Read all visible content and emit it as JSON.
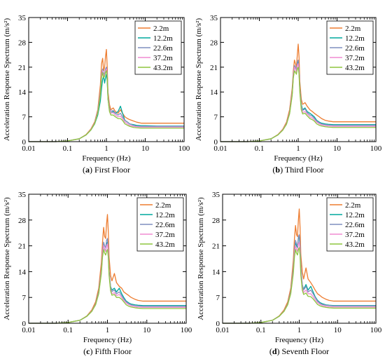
{
  "chart_data": [
    {
      "type": "line",
      "panel_letter": "a",
      "caption_title": "First Floor",
      "xlabel": "Frequency (Hz)",
      "ylabel": "Acceleration Response Spectrum (m/s²)",
      "xscale": "log",
      "xlim": [
        0.01,
        100
      ],
      "ylim": [
        0,
        35
      ],
      "xticks": [
        "0.01",
        "0.1",
        "1",
        "10",
        "100"
      ],
      "yticks": [
        "0",
        "7",
        "14",
        "21",
        "28",
        "35"
      ],
      "legend_position": "top-right",
      "x": [
        0.01,
        0.05,
        0.1,
        0.2,
        0.3,
        0.4,
        0.5,
        0.6,
        0.7,
        0.75,
        0.8,
        0.85,
        0.9,
        0.95,
        1.0,
        1.05,
        1.1,
        1.2,
        1.3,
        1.5,
        1.7,
        2.0,
        2.3,
        2.6,
        3.0,
        3.5,
        4.0,
        5.0,
        6.0,
        8.0,
        10,
        20,
        50,
        100
      ],
      "series": [
        {
          "name": "2.2m",
          "color": "#ED7D31",
          "values": [
            0,
            0,
            0.2,
            0.8,
            2.0,
            3.6,
            5.6,
            9.0,
            16.0,
            22.0,
            23.5,
            20.0,
            21.0,
            24.0,
            26.0,
            21.0,
            14.0,
            10.5,
            9.0,
            9.5,
            8.5,
            8.0,
            9.0,
            8.0,
            7.0,
            6.5,
            6.2,
            5.8,
            5.5,
            5.2,
            5.2,
            5.2,
            5.2,
            5.2
          ]
        },
        {
          "name": "12.2m",
          "color": "#00A99D",
          "values": [
            0,
            0,
            0.2,
            0.8,
            1.9,
            3.3,
            5.0,
            7.5,
            11.5,
            15.0,
            17.5,
            18.5,
            16.5,
            18.0,
            19.0,
            17.0,
            12.0,
            9.0,
            8.0,
            8.5,
            8.0,
            8.5,
            10.0,
            8.0,
            6.0,
            5.5,
            5.0,
            4.8,
            4.6,
            4.5,
            4.5,
            4.4,
            4.4,
            4.4
          ]
        },
        {
          "name": "22.6m",
          "color": "#7F8FBF",
          "values": [
            0,
            0,
            0.2,
            0.8,
            1.9,
            3.4,
            5.3,
            8.5,
            14.0,
            19.0,
            20.5,
            19.0,
            19.5,
            20.5,
            21.0,
            19.0,
            13.0,
            9.5,
            8.5,
            8.8,
            8.0,
            7.5,
            8.0,
            7.0,
            6.0,
            5.5,
            5.0,
            4.6,
            4.4,
            4.3,
            4.3,
            4.3,
            4.3,
            4.3
          ]
        },
        {
          "name": "37.2m",
          "color": "#F08CD2",
          "values": [
            0,
            0,
            0.2,
            0.8,
            1.9,
            3.4,
            5.2,
            8.2,
            13.5,
            18.5,
            20.0,
            18.5,
            19.0,
            20.0,
            20.5,
            18.5,
            12.5,
            9.0,
            8.0,
            8.2,
            7.5,
            7.0,
            7.2,
            6.5,
            5.5,
            5.0,
            4.6,
            4.3,
            4.2,
            4.1,
            4.1,
            4.1,
            4.1,
            4.1
          ]
        },
        {
          "name": "43.2m",
          "color": "#8DC63F",
          "values": [
            0,
            0,
            0.2,
            0.8,
            1.9,
            3.3,
            5.1,
            8.0,
            13.0,
            18.0,
            19.5,
            18.0,
            18.5,
            19.5,
            20.0,
            18.0,
            12.0,
            8.5,
            7.5,
            7.5,
            7.0,
            6.5,
            6.5,
            6.0,
            5.0,
            4.6,
            4.3,
            4.0,
            3.9,
            3.8,
            3.8,
            3.8,
            3.8,
            3.8
          ]
        }
      ]
    },
    {
      "type": "line",
      "panel_letter": "b",
      "caption_title": "Third Floor",
      "xlabel": "Frequency (Hz)",
      "ylabel": "Acceleration Response Spectrum (m/s²)",
      "xscale": "log",
      "xlim": [
        0.01,
        100
      ],
      "ylim": [
        0,
        35
      ],
      "xticks": [
        "0.01",
        "0.1",
        "1",
        "10",
        "100"
      ],
      "yticks": [
        "0",
        "7",
        "14",
        "21",
        "28",
        "35"
      ],
      "legend_position": "top-right",
      "x": [
        0.01,
        0.05,
        0.1,
        0.2,
        0.3,
        0.4,
        0.5,
        0.6,
        0.7,
        0.75,
        0.8,
        0.85,
        0.9,
        0.95,
        1.0,
        1.05,
        1.1,
        1.2,
        1.3,
        1.5,
        1.7,
        2.0,
        2.3,
        2.6,
        3.0,
        3.5,
        4.0,
        5.0,
        6.0,
        8.0,
        10,
        20,
        50,
        100
      ],
      "series": [
        {
          "name": "2.2m",
          "color": "#ED7D31",
          "values": [
            0,
            0,
            0.2,
            0.8,
            2.0,
            3.5,
            5.5,
            9.0,
            15.0,
            20.0,
            23.0,
            22.0,
            21.0,
            24.5,
            27.5,
            24.0,
            17.0,
            12.0,
            10.5,
            11.0,
            10.0,
            9.0,
            8.5,
            8.0,
            7.5,
            7.0,
            6.5,
            6.0,
            5.8,
            5.6,
            5.6,
            5.6,
            5.6,
            5.6
          ]
        },
        {
          "name": "12.2m",
          "color": "#00A99D",
          "values": [
            0,
            0,
            0.2,
            0.8,
            1.9,
            3.3,
            5.0,
            8.0,
            13.5,
            18.5,
            21.0,
            20.5,
            20.0,
            22.0,
            22.5,
            20.0,
            15.0,
            10.5,
            9.0,
            9.5,
            8.5,
            8.0,
            7.5,
            7.0,
            6.0,
            5.5,
            5.2,
            5.0,
            4.9,
            4.8,
            4.8,
            4.8,
            4.8,
            4.8
          ]
        },
        {
          "name": "22.6m",
          "color": "#7F8FBF",
          "values": [
            0,
            0,
            0.2,
            0.8,
            1.9,
            3.3,
            5.1,
            8.2,
            14.0,
            19.0,
            21.5,
            21.0,
            20.0,
            22.5,
            23.0,
            20.5,
            15.0,
            10.0,
            8.8,
            9.2,
            8.2,
            7.5,
            7.2,
            6.6,
            5.8,
            5.3,
            5.0,
            4.8,
            4.7,
            4.6,
            4.6,
            4.6,
            4.6,
            4.6
          ]
        },
        {
          "name": "37.2m",
          "color": "#F08CD2",
          "values": [
            0,
            0,
            0.2,
            0.8,
            1.9,
            3.3,
            5.0,
            8.0,
            13.5,
            18.5,
            21.0,
            20.5,
            19.5,
            21.5,
            22.0,
            19.5,
            14.5,
            9.5,
            8.2,
            8.5,
            7.8,
            7.0,
            6.7,
            6.2,
            5.5,
            5.0,
            4.7,
            4.5,
            4.4,
            4.3,
            4.3,
            4.3,
            4.3,
            4.3
          ]
        },
        {
          "name": "43.2m",
          "color": "#8DC63F",
          "values": [
            0,
            0,
            0.2,
            0.8,
            1.9,
            3.2,
            4.9,
            7.8,
            13.0,
            18.0,
            20.0,
            19.5,
            19.0,
            20.5,
            21.0,
            19.0,
            14.0,
            9.0,
            7.8,
            8.0,
            7.3,
            6.5,
            6.2,
            5.8,
            5.0,
            4.6,
            4.4,
            4.2,
            4.1,
            4.0,
            4.0,
            4.0,
            4.0,
            4.0
          ]
        }
      ]
    },
    {
      "type": "line",
      "panel_letter": "c",
      "caption_title": "Fifth Floor",
      "xlabel": "Frequency (Hz)",
      "ylabel": "Acceleration Response Spectrum (m/s²)",
      "xscale": "log",
      "xlim": [
        0.01,
        100
      ],
      "ylim": [
        0,
        35
      ],
      "xticks": [
        "0.01",
        "0.1",
        "1",
        "10",
        "100"
      ],
      "yticks": [
        "0",
        "7",
        "14",
        "21",
        "28",
        "35"
      ],
      "legend_position": "top-right",
      "x": [
        0.01,
        0.05,
        0.1,
        0.2,
        0.3,
        0.4,
        0.5,
        0.6,
        0.7,
        0.75,
        0.8,
        0.85,
        0.9,
        0.95,
        1.0,
        1.05,
        1.1,
        1.2,
        1.3,
        1.5,
        1.7,
        2.0,
        2.3,
        2.6,
        3.0,
        3.5,
        4.0,
        5.0,
        6.0,
        8.0,
        10,
        20,
        50,
        100
      ],
      "series": [
        {
          "name": "2.2m",
          "color": "#ED7D31",
          "values": [
            0,
            0,
            0.2,
            0.8,
            2.0,
            3.6,
            5.8,
            9.5,
            16.5,
            22.0,
            26.0,
            23.5,
            23.0,
            27.0,
            29.5,
            25.0,
            18.0,
            13.0,
            11.5,
            13.5,
            11.0,
            10.0,
            9.5,
            8.5,
            8.0,
            7.5,
            7.0,
            6.5,
            6.2,
            6.0,
            6.0,
            6.0,
            6.0,
            6.0
          ]
        },
        {
          "name": "12.2m",
          "color": "#00A99D",
          "values": [
            0,
            0,
            0.2,
            0.8,
            1.9,
            3.3,
            5.2,
            8.5,
            14.0,
            19.0,
            21.0,
            20.0,
            19.5,
            21.5,
            22.0,
            19.5,
            14.0,
            10.0,
            9.0,
            9.5,
            8.5,
            9.5,
            8.0,
            7.0,
            6.0,
            5.5,
            5.2,
            5.0,
            4.9,
            4.8,
            4.8,
            4.8,
            4.8,
            4.8
          ]
        },
        {
          "name": "22.6m",
          "color": "#7F8FBF",
          "values": [
            0,
            0,
            0.2,
            0.8,
            1.9,
            3.3,
            5.2,
            8.5,
            14.5,
            19.5,
            22.0,
            21.0,
            20.5,
            22.5,
            23.0,
            20.0,
            14.5,
            9.8,
            8.6,
            9.0,
            8.0,
            8.5,
            7.5,
            6.6,
            5.8,
            5.3,
            5.0,
            4.8,
            4.7,
            4.6,
            4.6,
            4.6,
            4.6,
            4.6
          ]
        },
        {
          "name": "37.2m",
          "color": "#F08CD2",
          "values": [
            0,
            0,
            0.2,
            0.8,
            1.9,
            3.3,
            5.1,
            8.2,
            14.0,
            19.0,
            21.0,
            20.0,
            19.5,
            21.0,
            21.5,
            19.0,
            13.5,
            9.2,
            8.0,
            8.3,
            7.5,
            7.8,
            7.0,
            6.2,
            5.5,
            5.0,
            4.7,
            4.5,
            4.4,
            4.3,
            4.3,
            4.3,
            4.3,
            4.3
          ]
        },
        {
          "name": "43.2m",
          "color": "#8DC63F",
          "values": [
            0,
            0,
            0.2,
            0.8,
            1.9,
            3.2,
            5.0,
            8.0,
            13.5,
            18.0,
            20.0,
            19.0,
            18.5,
            19.5,
            20.0,
            18.0,
            13.0,
            8.8,
            7.6,
            7.8,
            7.0,
            7.0,
            6.5,
            5.8,
            5.0,
            4.6,
            4.4,
            4.2,
            4.1,
            4.0,
            4.0,
            4.0,
            4.0,
            4.0
          ]
        }
      ]
    },
    {
      "type": "line",
      "panel_letter": "d",
      "caption_title": "Seventh Floor",
      "xlabel": "Frequency (Hz)",
      "ylabel": "Acceleration Response Spectrum (m/s²)",
      "xscale": "log",
      "xlim": [
        0.01,
        100
      ],
      "ylim": [
        0,
        35
      ],
      "xticks": [
        "0.01",
        "0.1",
        "1",
        "10",
        "100"
      ],
      "yticks": [
        "0",
        "7",
        "14",
        "21",
        "28",
        "35"
      ],
      "legend_position": "top-right",
      "x": [
        0.01,
        0.05,
        0.1,
        0.2,
        0.3,
        0.4,
        0.5,
        0.6,
        0.7,
        0.75,
        0.8,
        0.85,
        0.9,
        0.95,
        1.0,
        1.05,
        1.1,
        1.2,
        1.3,
        1.5,
        1.7,
        2.0,
        2.3,
        2.6,
        3.0,
        3.5,
        4.0,
        5.0,
        6.0,
        8.0,
        10,
        20,
        50,
        100
      ],
      "series": [
        {
          "name": "2.2m",
          "color": "#ED7D31",
          "values": [
            0,
            0,
            0.2,
            0.8,
            2.0,
            3.6,
            5.8,
            9.5,
            17.0,
            23.0,
            26.5,
            24.0,
            23.5,
            28.0,
            31.0,
            26.0,
            18.5,
            14.0,
            12.0,
            15.0,
            12.0,
            11.0,
            10.0,
            9.0,
            8.0,
            7.5,
            7.0,
            6.5,
            6.2,
            6.0,
            6.0,
            6.0,
            6.0,
            6.0
          ]
        },
        {
          "name": "12.2m",
          "color": "#00A99D",
          "values": [
            0,
            0,
            0.2,
            0.8,
            1.9,
            3.3,
            5.2,
            8.5,
            14.5,
            19.5,
            22.0,
            21.0,
            20.5,
            23.0,
            23.5,
            20.5,
            15.0,
            10.5,
            9.2,
            10.5,
            9.0,
            10.0,
            8.5,
            7.2,
            6.2,
            5.6,
            5.3,
            5.0,
            4.9,
            4.8,
            4.8,
            4.8,
            4.8,
            4.8
          ]
        },
        {
          "name": "22.6m",
          "color": "#7F8FBF",
          "values": [
            0,
            0,
            0.2,
            0.8,
            1.9,
            3.3,
            5.2,
            8.5,
            15.0,
            20.0,
            22.5,
            21.5,
            21.0,
            23.5,
            24.0,
            21.0,
            15.5,
            10.5,
            9.0,
            10.0,
            8.5,
            9.0,
            8.0,
            7.0,
            6.0,
            5.4,
            5.1,
            4.9,
            4.8,
            4.7,
            4.7,
            4.7,
            4.7,
            4.7
          ]
        },
        {
          "name": "37.2m",
          "color": "#F08CD2",
          "values": [
            0,
            0,
            0.2,
            0.8,
            1.9,
            3.3,
            5.1,
            8.2,
            14.0,
            19.0,
            21.0,
            20.0,
            19.5,
            21.5,
            22.0,
            19.5,
            14.0,
            9.5,
            8.3,
            9.0,
            8.0,
            8.0,
            7.2,
            6.4,
            5.6,
            5.1,
            4.8,
            4.6,
            4.5,
            4.4,
            4.4,
            4.4,
            4.4,
            4.4
          ]
        },
        {
          "name": "43.2m",
          "color": "#8DC63F",
          "values": [
            0,
            0,
            0.2,
            0.8,
            1.9,
            3.2,
            5.0,
            8.0,
            13.5,
            18.0,
            20.0,
            19.0,
            18.5,
            20.0,
            20.5,
            18.5,
            13.0,
            9.0,
            7.8,
            8.2,
            7.3,
            7.2,
            6.6,
            5.9,
            5.1,
            4.7,
            4.5,
            4.3,
            4.2,
            4.1,
            4.1,
            4.1,
            4.1,
            4.1
          ]
        }
      ]
    }
  ]
}
